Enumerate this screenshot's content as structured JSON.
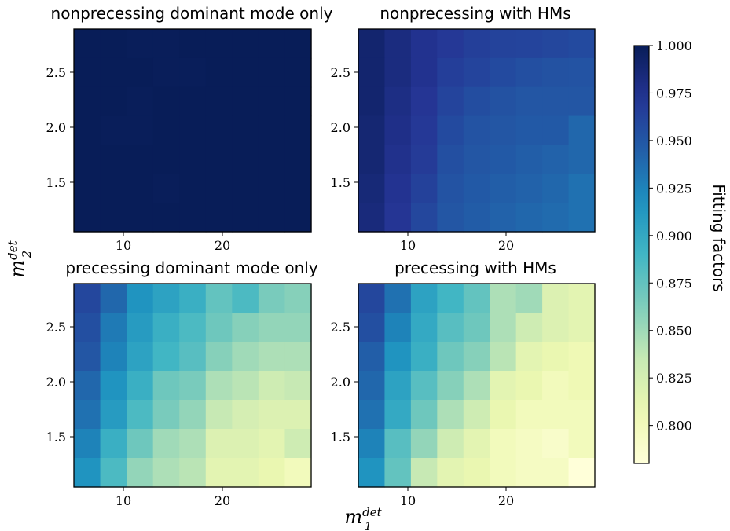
{
  "chart_data": {
    "type": "heatmap",
    "colormap": "YlGnBu",
    "xlabel": {
      "base": "m",
      "sub": "1",
      "sup": "det"
    },
    "ylabel": {
      "base": "m",
      "sub": "2",
      "sup": "det"
    },
    "x_ticks": [
      "10",
      "20"
    ],
    "y_ticks": [
      "1.5",
      "2.0",
      "2.5"
    ],
    "x_tick_values": [
      10,
      20
    ],
    "y_tick_values": [
      1.5,
      2.0,
      2.5
    ],
    "xlim": [
      5,
      29
    ],
    "ylim": [
      1.03,
      2.87
    ],
    "vmin": 0.78,
    "vmax": 1.0,
    "grid": false,
    "colorbar": {
      "label": "Fitting factors",
      "ticks": [
        "1.000",
        "0.975",
        "0.950",
        "0.925",
        "0.900",
        "0.875",
        "0.850",
        "0.825",
        "0.800"
      ],
      "tick_values": [
        1.0,
        0.975,
        0.95,
        0.925,
        0.9,
        0.875,
        0.85,
        0.825,
        0.8
      ]
    },
    "panels": [
      {
        "title": "nonprecessing dominant mode only",
        "rows_top_to_bottom": [
          [
            1.0,
            1.0,
            0.999,
            0.999,
            1.0,
            1.0,
            1.0,
            1.0,
            1.0
          ],
          [
            1.0,
            1.0,
            1.0,
            0.999,
            0.999,
            1.0,
            1.0,
            1.0,
            1.0
          ],
          [
            1.0,
            1.0,
            0.999,
            1.0,
            1.0,
            1.0,
            1.0,
            1.0,
            1.0
          ],
          [
            1.0,
            0.999,
            0.999,
            1.0,
            1.0,
            1.0,
            1.0,
            1.0,
            1.0
          ],
          [
            1.0,
            1.0,
            1.0,
            1.0,
            1.0,
            1.0,
            1.0,
            1.0,
            1.0
          ],
          [
            1.0,
            1.0,
            1.0,
            0.999,
            1.0,
            1.0,
            1.0,
            1.0,
            1.0
          ],
          [
            1.0,
            1.0,
            1.0,
            1.0,
            1.0,
            1.0,
            1.0,
            1.0,
            1.0
          ]
        ]
      },
      {
        "title": "nonprecessing with HMs",
        "rows_top_to_bottom": [
          [
            0.99,
            0.982,
            0.975,
            0.97,
            0.965,
            0.963,
            0.962,
            0.96,
            0.958
          ],
          [
            0.99,
            0.982,
            0.975,
            0.966,
            0.962,
            0.958,
            0.955,
            0.953,
            0.952
          ],
          [
            0.99,
            0.98,
            0.972,
            0.962,
            0.956,
            0.953,
            0.95,
            0.95,
            0.95
          ],
          [
            0.988,
            0.978,
            0.97,
            0.958,
            0.952,
            0.95,
            0.948,
            0.948,
            0.94
          ],
          [
            0.988,
            0.976,
            0.968,
            0.955,
            0.95,
            0.948,
            0.945,
            0.943,
            0.94
          ],
          [
            0.986,
            0.974,
            0.964,
            0.952,
            0.948,
            0.945,
            0.943,
            0.94,
            0.935
          ],
          [
            0.984,
            0.972,
            0.96,
            0.95,
            0.946,
            0.943,
            0.94,
            0.938,
            0.935
          ]
        ]
      },
      {
        "title": "precessing dominant mode only",
        "rows_top_to_bottom": [
          [
            0.96,
            0.94,
            0.915,
            0.905,
            0.895,
            0.875,
            0.885,
            0.865,
            0.86
          ],
          [
            0.955,
            0.93,
            0.91,
            0.895,
            0.885,
            0.87,
            0.86,
            0.855,
            0.855
          ],
          [
            0.95,
            0.925,
            0.905,
            0.89,
            0.88,
            0.86,
            0.85,
            0.845,
            0.845
          ],
          [
            0.94,
            0.915,
            0.895,
            0.87,
            0.865,
            0.845,
            0.84,
            0.83,
            0.835
          ],
          [
            0.935,
            0.91,
            0.885,
            0.865,
            0.855,
            0.835,
            0.825,
            0.82,
            0.82
          ],
          [
            0.925,
            0.895,
            0.87,
            0.85,
            0.845,
            0.82,
            0.82,
            0.815,
            0.83
          ],
          [
            0.915,
            0.885,
            0.855,
            0.845,
            0.84,
            0.815,
            0.815,
            0.81,
            0.8
          ]
        ]
      },
      {
        "title": "precessing with HMs",
        "rows_top_to_bottom": [
          [
            0.96,
            0.935,
            0.905,
            0.89,
            0.875,
            0.845,
            0.85,
            0.82,
            0.815
          ],
          [
            0.955,
            0.925,
            0.9,
            0.88,
            0.87,
            0.845,
            0.83,
            0.82,
            0.815
          ],
          [
            0.945,
            0.915,
            0.895,
            0.87,
            0.86,
            0.84,
            0.815,
            0.81,
            0.805
          ],
          [
            0.94,
            0.905,
            0.88,
            0.86,
            0.845,
            0.815,
            0.81,
            0.8,
            0.805
          ],
          [
            0.935,
            0.9,
            0.87,
            0.845,
            0.83,
            0.81,
            0.8,
            0.8,
            0.8
          ],
          [
            0.925,
            0.88,
            0.855,
            0.83,
            0.815,
            0.8,
            0.795,
            0.79,
            0.8
          ],
          [
            0.915,
            0.875,
            0.835,
            0.815,
            0.81,
            0.8,
            0.795,
            0.795,
            0.78
          ]
        ]
      }
    ]
  }
}
